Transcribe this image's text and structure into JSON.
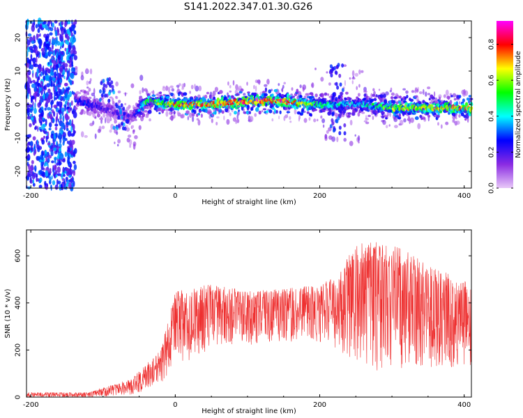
{
  "title": "S141.2022.347.01.30.G26",
  "chart_data": [
    {
      "type": "heatmap",
      "xlabel": "Height of straight line (km)",
      "ylabel": "Frequency (Hz)",
      "xlim": [
        -206,
        410
      ],
      "ylim": [
        -25,
        25
      ],
      "x_ticks": [
        -200,
        0,
        200,
        400
      ],
      "y_ticks": [
        -20,
        -10,
        0,
        10,
        20
      ],
      "x_tick_labels": [
        "-200",
        "0",
        "200",
        "400"
      ],
      "y_tick_labels": [
        "-20",
        "-10",
        "0",
        "10",
        "20"
      ],
      "colorbar": {
        "label": "Normalized spectral amplitude",
        "range": [
          0,
          0.93
        ],
        "ticks": [
          0,
          0.2,
          0.4,
          0.6,
          0.8
        ],
        "tick_labels": [
          "0.0",
          "0.2",
          "0.4",
          "0.6",
          "0.8"
        ],
        "colors": [
          "#e8c8f8",
          "#8a2be2",
          "#0000ff",
          "#00ffff",
          "#00ff00",
          "#ffff00",
          "#ff0000",
          "#ff00ff"
        ]
      },
      "ridge": [
        {
          "x": -135,
          "freq": 1,
          "amp": 0.3
        },
        {
          "x": -100,
          "freq": -1,
          "amp": 0.2
        },
        {
          "x": -60,
          "freq": -4,
          "amp": 0.15
        },
        {
          "x": -40,
          "freq": 1,
          "amp": 0.5
        },
        {
          "x": 0,
          "freq": 0,
          "amp": 0.75
        },
        {
          "x": 50,
          "freq": 0,
          "amp": 0.8
        },
        {
          "x": 100,
          "freq": 1,
          "amp": 0.85
        },
        {
          "x": 150,
          "freq": 1,
          "amp": 0.85
        },
        {
          "x": 200,
          "freq": 0,
          "amp": 0.5
        },
        {
          "x": 250,
          "freq": 0,
          "amp": 0.4
        },
        {
          "x": 300,
          "freq": -1,
          "amp": 0.6
        },
        {
          "x": 350,
          "freq": -1,
          "amp": 0.7
        },
        {
          "x": 400,
          "freq": -1,
          "amp": 0.7
        }
      ]
    },
    {
      "type": "line",
      "xlabel": "Height of straight line (km)",
      "ylabel": "SNR (10 * v/v)",
      "xlim": [
        -206,
        410
      ],
      "ylim": [
        0,
        710
      ],
      "x_ticks": [
        -200,
        0,
        200,
        400
      ],
      "y_ticks": [
        0,
        200,
        400,
        600
      ],
      "x_tick_labels": [
        "-200",
        "0",
        "200",
        "400"
      ],
      "y_tick_labels": [
        "0",
        "200",
        "400",
        "600"
      ],
      "series": [
        {
          "color": "#ee3030",
          "envelope": [
            {
              "x": -206,
              "low": 0,
              "high": 20
            },
            {
              "x": -120,
              "low": 0,
              "high": 20
            },
            {
              "x": -60,
              "low": 10,
              "high": 80
            },
            {
              "x": -20,
              "low": 50,
              "high": 200
            },
            {
              "x": 0,
              "low": 120,
              "high": 450
            },
            {
              "x": 50,
              "low": 200,
              "high": 480
            },
            {
              "x": 100,
              "low": 220,
              "high": 450
            },
            {
              "x": 150,
              "low": 240,
              "high": 460
            },
            {
              "x": 200,
              "low": 220,
              "high": 480
            },
            {
              "x": 225,
              "low": 200,
              "high": 520
            },
            {
              "x": 250,
              "low": 150,
              "high": 650
            },
            {
              "x": 280,
              "low": 100,
              "high": 660
            },
            {
              "x": 310,
              "low": 120,
              "high": 640
            },
            {
              "x": 350,
              "low": 120,
              "high": 560
            },
            {
              "x": 400,
              "low": 100,
              "high": 500
            }
          ]
        }
      ]
    }
  ]
}
